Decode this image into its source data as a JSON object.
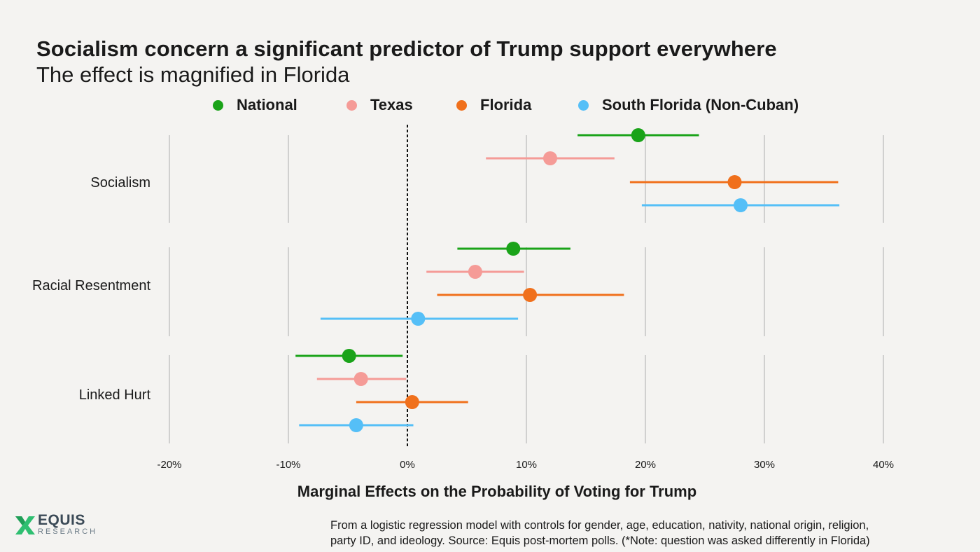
{
  "title": "Socialism concern a significant predictor of Trump support everywhere",
  "subtitle": "The effect is magnified in Florida",
  "footnote": {
    "line1": "From a logistic regression model with controls for gender, age, education, nativity, national origin, religion,",
    "line2": "party ID, and ideology. Source: Equis post-mortem polls. (*Note: question was asked differently in Florida)"
  },
  "logo": {
    "brand": "EQUIS",
    "sub": "RESEARCH"
  },
  "icons": {
    "logo": "equis-x-logo-icon"
  },
  "chart_data": {
    "type": "scatter",
    "subtype": "coefficient-plot-with-confidence-intervals",
    "title": "Socialism concern a significant predictor of Trump support everywhere",
    "subtitle": "The effect is magnified in Florida",
    "xlabel": "Marginal Effects on the Probability of Voting for Trump",
    "ylabel": "",
    "xlim": [
      -20,
      40
    ],
    "xticks": [
      -20,
      -10,
      0,
      10,
      20,
      30,
      40
    ],
    "xtick_labels": [
      "-20%",
      "-10%",
      "0%",
      "10%",
      "20%",
      "30%",
      "40%"
    ],
    "reference_line": {
      "x": 0,
      "style": "dashed"
    },
    "grid": "vertical",
    "legend_position": "top",
    "categories": [
      "Socialism",
      "Racial Resentment",
      "Linked Hurt"
    ],
    "series": [
      {
        "name": "National",
        "color": "#1aa319",
        "estimate": [
          19.4,
          8.9,
          -4.9
        ],
        "ci_low": [
          14.3,
          4.2,
          -9.4
        ],
        "ci_high": [
          24.5,
          13.7,
          -0.4
        ]
      },
      {
        "name": "Texas",
        "color": "#f59b97",
        "estimate": [
          12.0,
          5.7,
          -3.9
        ],
        "ci_low": [
          6.6,
          1.6,
          -7.6
        ],
        "ci_high": [
          17.4,
          9.8,
          -0.1
        ]
      },
      {
        "name": "Florida",
        "color": "#f0701c",
        "estimate": [
          27.5,
          10.3,
          0.4
        ],
        "ci_low": [
          18.7,
          2.5,
          -4.3
        ],
        "ci_high": [
          36.2,
          18.2,
          5.1
        ]
      },
      {
        "name": "South Florida (Non-Cuban)",
        "color": "#55bff7",
        "estimate": [
          28.0,
          0.9,
          -4.3
        ],
        "ci_low": [
          19.7,
          -7.3,
          -9.1
        ],
        "ci_high": [
          36.3,
          9.3,
          0.5
        ]
      }
    ]
  }
}
